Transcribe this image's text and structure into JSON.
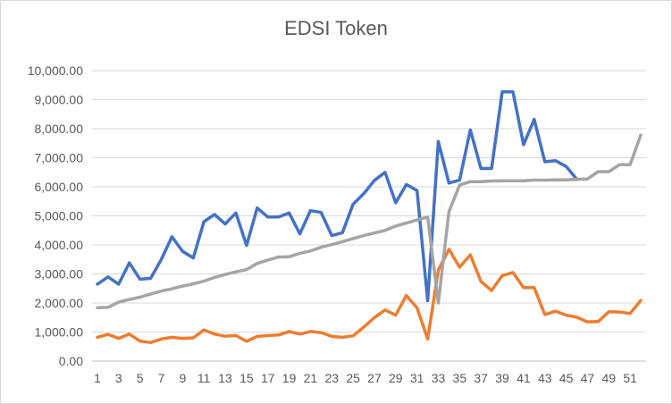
{
  "chart_data": {
    "type": "line",
    "title": "EDSI Token",
    "xlabel": "",
    "ylabel": "",
    "ylim": [
      0,
      10000
    ],
    "yticks": [
      "0.00",
      "1,000.00",
      "2,000.00",
      "3,000.00",
      "4,000.00",
      "5,000.00",
      "6,000.00",
      "7,000.00",
      "8,000.00",
      "9,000.00",
      "10,000.00"
    ],
    "x": [
      1,
      2,
      3,
      4,
      5,
      6,
      7,
      8,
      9,
      10,
      11,
      12,
      13,
      14,
      15,
      16,
      17,
      18,
      19,
      20,
      21,
      22,
      23,
      24,
      25,
      26,
      27,
      28,
      29,
      30,
      31,
      32,
      33,
      34,
      35,
      36,
      37,
      38,
      39,
      40,
      41,
      42,
      43,
      44,
      45,
      46,
      47,
      48,
      49,
      50,
      51,
      52
    ],
    "xtick_labels": [
      "1",
      "3",
      "5",
      "7",
      "9",
      "11",
      "13",
      "15",
      "17",
      "19",
      "21",
      "23",
      "25",
      "27",
      "29",
      "31",
      "33",
      "35",
      "37",
      "39",
      "41",
      "43",
      "45",
      "47",
      "49",
      "51"
    ],
    "grid": true,
    "legend": "none",
    "series": [
      {
        "color": "#4472c4",
        "values": [
          2650,
          2900,
          2650,
          3380,
          2820,
          2850,
          3500,
          4280,
          3780,
          3550,
          4800,
          5050,
          4720,
          5100,
          3980,
          5270,
          4960,
          4960,
          5100,
          4380,
          5180,
          5120,
          4320,
          4420,
          5400,
          5760,
          6220,
          6500,
          5450,
          6080,
          5870,
          2080,
          7560,
          6130,
          6230,
          7960,
          6630,
          6630,
          9270,
          9270,
          7450,
          8320,
          6860,
          6900,
          6700,
          6260,
          null,
          null,
          null,
          null,
          null,
          null
        ]
      },
      {
        "color": "#ed7d31",
        "values": [
          820,
          920,
          780,
          930,
          690,
          640,
          760,
          820,
          780,
          800,
          1070,
          930,
          860,
          880,
          680,
          850,
          880,
          900,
          1020,
          930,
          1020,
          980,
          850,
          820,
          870,
          1170,
          1500,
          1760,
          1580,
          2260,
          1830,
          760,
          3130,
          3850,
          3230,
          3660,
          2740,
          2430,
          2940,
          3050,
          2530,
          2530,
          1600,
          1720,
          1580,
          1510,
          1350,
          1360,
          1700,
          1690,
          1640,
          2090
        ]
      },
      {
        "color": "#a5a5a5",
        "values": [
          1840,
          1850,
          2030,
          2120,
          2200,
          2310,
          2410,
          2490,
          2580,
          2660,
          2750,
          2880,
          2980,
          3070,
          3150,
          3360,
          3480,
          3580,
          3590,
          3710,
          3790,
          3920,
          4010,
          4110,
          4220,
          4320,
          4410,
          4500,
          4650,
          4750,
          4860,
          4960,
          2000,
          5140,
          6060,
          6180,
          6180,
          6200,
          6210,
          6210,
          6210,
          6230,
          6230,
          6240,
          6240,
          6260,
          6270,
          6520,
          6520,
          6760,
          6760,
          7780
        ]
      }
    ]
  }
}
